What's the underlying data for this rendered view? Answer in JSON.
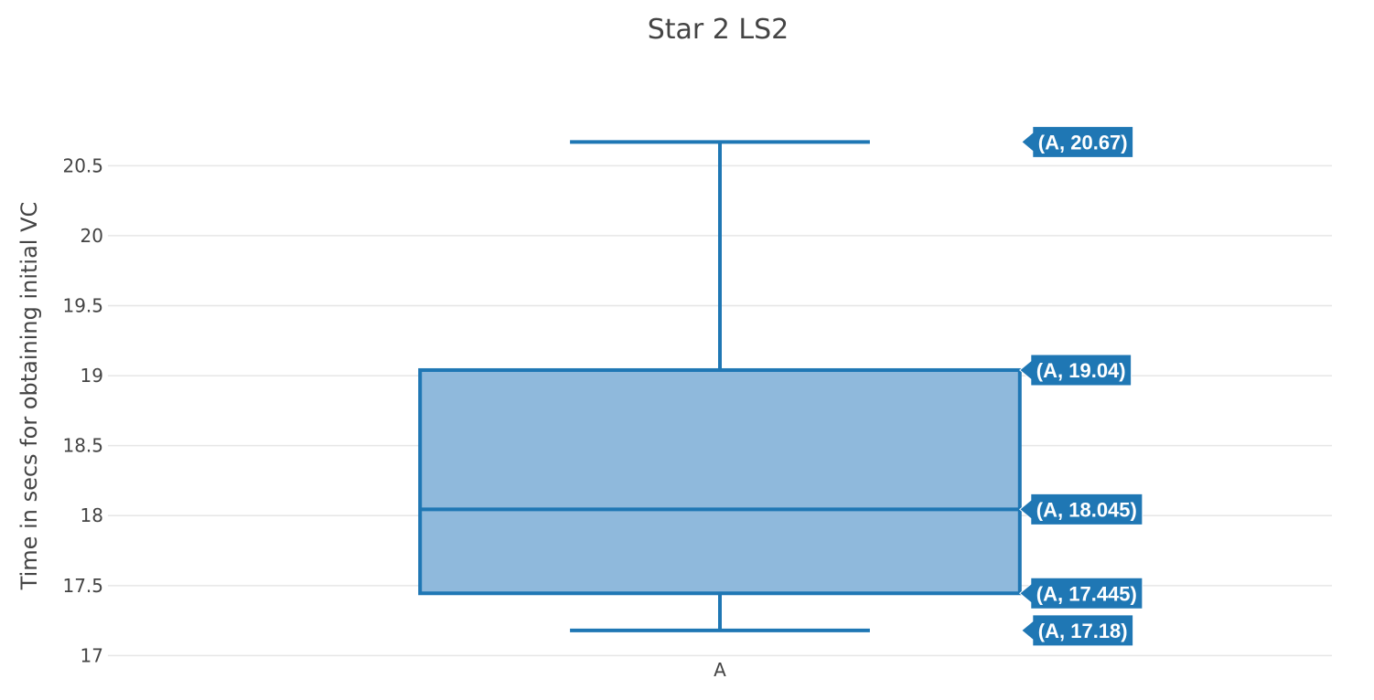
{
  "chart_data": {
    "type": "box",
    "title": "Star 2 LS2",
    "xlabel": "",
    "ylabel": "Time in secs for obtaining initial VC",
    "categories": [
      "A"
    ],
    "yticks": [
      "17",
      "17.5",
      "18",
      "18.5",
      "19",
      "19.5",
      "20",
      "20.5"
    ],
    "ylim": [
      16.97,
      20.77
    ],
    "grid": true,
    "series": [
      {
        "category": "A",
        "max": 20.67,
        "q3": 19.04,
        "median": 18.045,
        "q1": 17.445,
        "min": 17.18
      }
    ],
    "hover_labels": [
      "(A, 20.67)",
      "(A, 19.04)",
      "(A, 18.045)",
      "(A, 17.445)",
      "(A, 17.18)"
    ],
    "colors": {
      "line": "#1f77b4",
      "fill": "#8fb9dc",
      "label_bg": "#1f77b4",
      "grid": "#e6e6e6",
      "text": "#444444"
    }
  }
}
